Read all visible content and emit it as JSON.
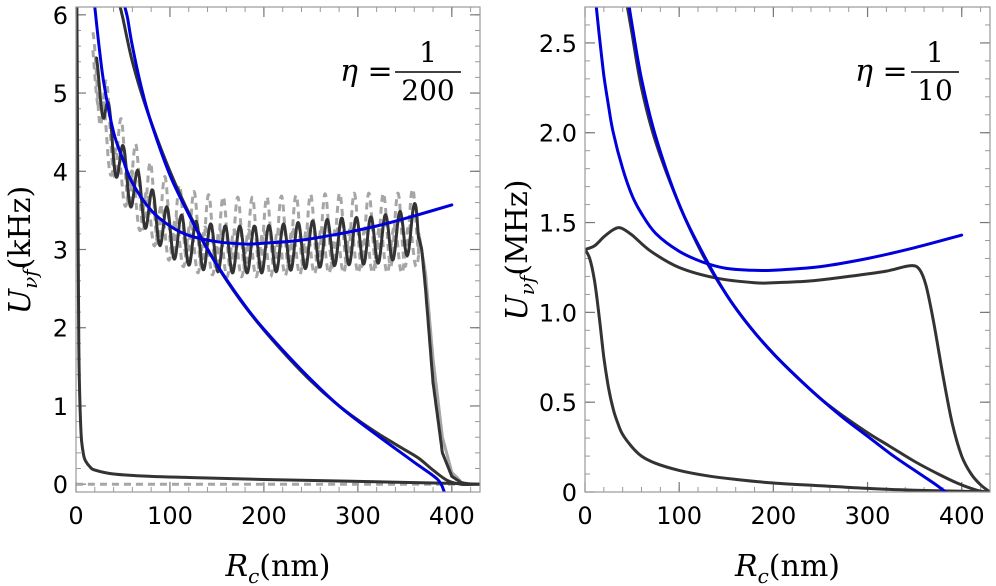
{
  "chart_data": [
    {
      "type": "line",
      "panel": "left",
      "xlabel": {
        "var": "R",
        "sub": "c",
        "unit": "(nm)"
      },
      "ylabel": {
        "var": "U",
        "sub": "νf",
        "unit": "(kHz)"
      },
      "annotation": {
        "lhs": "η =",
        "num": "1",
        "den": "200"
      },
      "xlim": [
        0,
        430
      ],
      "ylim": [
        -0.1,
        6.1
      ],
      "xticks": [
        0,
        100,
        200,
        300,
        400
      ],
      "xtick_labels": [
        "0",
        "100",
        "200",
        "300",
        "400"
      ],
      "yticks": [
        0,
        1,
        2,
        3,
        4,
        5,
        6
      ],
      "ytick_labels": [
        "0",
        "1",
        "2",
        "3",
        "4",
        "5",
        "6"
      ],
      "series": [
        {
          "style": "gray-dashed",
          "color": "#a6a6a6",
          "x": [
            0,
            430
          ],
          "y": [
            0,
            0
          ]
        },
        {
          "style": "gray-dashed",
          "color": "#a6a6a6",
          "kind": "oscillating",
          "osc": {
            "A": 0.47,
            "offset": 0.15,
            "period": 15.5,
            "phase": 0.9
          },
          "x": [
            18,
            25,
            35,
            50,
            70,
            100,
            130,
            160,
            200,
            240,
            280,
            320,
            350,
            365,
            372,
            380,
            390,
            400,
            410
          ],
          "y": [
            5.6,
            4.9,
            4.4,
            4.0,
            3.6,
            3.25,
            3.1,
            3.05,
            3.05,
            3.08,
            3.1,
            3.1,
            3.1,
            3.2,
            2.7,
            1.6,
            0.6,
            0.15,
            0.03
          ]
        },
        {
          "style": "gray-dashed",
          "color": "#a6a6a6",
          "kind": "oscillating",
          "osc": {
            "A": 0.3,
            "offset": -0.1,
            "period": 15.5,
            "phase": 2.4
          },
          "x": [
            18,
            25,
            35,
            50,
            70,
            100,
            130,
            160,
            200,
            240,
            280,
            320,
            350,
            365,
            372,
            380,
            390,
            400,
            410
          ],
          "y": [
            5.6,
            4.9,
            4.4,
            4.0,
            3.6,
            3.25,
            3.1,
            3.05,
            3.05,
            3.08,
            3.1,
            3.1,
            3.1,
            3.2,
            2.7,
            1.6,
            0.6,
            0.15,
            0.03
          ]
        },
        {
          "style": "dark",
          "color": "#333333",
          "kind": "oscillating",
          "osc": {
            "A": 0.3,
            "offset": 0.0,
            "period": 15.5,
            "phase": 0.0
          },
          "x": [
            22,
            30,
            40,
            55,
            75,
            100,
            130,
            160,
            200,
            240,
            280,
            320,
            350,
            362,
            368,
            372,
            380,
            390,
            400,
            410,
            420
          ],
          "y": [
            5.4,
            4.8,
            4.3,
            3.9,
            3.55,
            3.2,
            3.05,
            3.0,
            3.0,
            3.05,
            3.1,
            3.12,
            3.2,
            3.3,
            3.0,
            2.5,
            1.3,
            0.4,
            0.1,
            0.02,
            0.0
          ]
        },
        {
          "style": "dark",
          "color": "#333333",
          "x": [
            1,
            2,
            3,
            4,
            5,
            6,
            8,
            10,
            15,
            20,
            40,
            80,
            120,
            200,
            300,
            400,
            430
          ],
          "y": [
            6.1,
            3.5,
            1.8,
            1.1,
            0.75,
            0.55,
            0.38,
            0.3,
            0.22,
            0.18,
            0.13,
            0.1,
            0.085,
            0.06,
            0.035,
            0.01,
            0.0
          ]
        },
        {
          "style": "dark",
          "color": "#333333",
          "x": [
            47,
            50,
            60,
            75,
            100,
            125,
            150,
            175,
            200,
            225,
            250,
            275,
            300,
            325,
            350,
            365,
            380,
            395,
            410,
            430
          ],
          "y": [
            6.1,
            5.95,
            5.4,
            4.8,
            4.0,
            3.35,
            2.8,
            2.35,
            1.97,
            1.63,
            1.32,
            1.05,
            0.82,
            0.62,
            0.44,
            0.33,
            0.18,
            0.05,
            0.0,
            0.0
          ]
        },
        {
          "style": "blue",
          "color": "#0000dd",
          "x": [
            52,
            55,
            60,
            70,
            80,
            100,
            120,
            140,
            160,
            180,
            200,
            240,
            280,
            320,
            360,
            385,
            392
          ],
          "y": [
            6.1,
            5.95,
            5.6,
            5.05,
            4.62,
            3.95,
            3.45,
            3.0,
            2.62,
            2.28,
            1.98,
            1.46,
            1.0,
            0.63,
            0.28,
            0.06,
            -0.1
          ]
        },
        {
          "style": "blue",
          "color": "#0000dd",
          "x": [
            20,
            25,
            30,
            40,
            50,
            60,
            80,
            100,
            120,
            150,
            180,
            200,
            240,
            280,
            320,
            360,
            400
          ],
          "y": [
            6.1,
            5.55,
            5.1,
            4.5,
            4.15,
            3.85,
            3.5,
            3.3,
            3.18,
            3.1,
            3.07,
            3.08,
            3.12,
            3.2,
            3.3,
            3.43,
            3.57
          ]
        }
      ]
    },
    {
      "type": "line",
      "panel": "right",
      "xlabel": {
        "var": "R",
        "sub": "c",
        "unit": "(nm)"
      },
      "ylabel": {
        "var": "U",
        "sub": "νf",
        "unit": "(MHz)"
      },
      "annotation": {
        "lhs": "η =",
        "num": "1",
        "den": "10"
      },
      "xlim": [
        0,
        430
      ],
      "ylim": [
        0,
        2.7
      ],
      "xticks": [
        0,
        100,
        200,
        300,
        400
      ],
      "xtick_labels": [
        "0",
        "100",
        "200",
        "300",
        "400"
      ],
      "yticks": [
        0,
        0.5,
        1.0,
        1.5,
        2.0,
        2.5
      ],
      "ytick_labels": [
        "0",
        "0.5",
        "1.0",
        "1.5",
        "2.0",
        "2.5"
      ],
      "series": [
        {
          "style": "dark",
          "color": "#333333",
          "x": [
            0,
            5,
            10,
            15,
            20,
            25,
            30,
            35,
            40,
            50,
            60,
            75,
            100,
            130,
            160,
            200,
            250,
            300,
            350,
            400,
            430
          ],
          "y": [
            1.35,
            1.3,
            1.18,
            0.98,
            0.75,
            0.58,
            0.46,
            0.38,
            0.32,
            0.25,
            0.2,
            0.16,
            0.12,
            0.09,
            0.07,
            0.05,
            0.035,
            0.02,
            0.01,
            0.004,
            0.0
          ]
        },
        {
          "style": "dark",
          "color": "#333333",
          "x": [
            0,
            10,
            20,
            30,
            38,
            50,
            70,
            100,
            140,
            180,
            200,
            240,
            280,
            320,
            345,
            355,
            362,
            370,
            380,
            390,
            400,
            410,
            420,
            430
          ],
          "y": [
            1.35,
            1.37,
            1.42,
            1.46,
            1.47,
            1.43,
            1.34,
            1.25,
            1.19,
            1.165,
            1.165,
            1.175,
            1.2,
            1.23,
            1.26,
            1.24,
            1.15,
            0.95,
            0.65,
            0.38,
            0.2,
            0.1,
            0.04,
            0.0
          ]
        },
        {
          "style": "dark",
          "color": "#333333",
          "x": [
            45,
            50,
            60,
            75,
            100,
            125,
            150,
            175,
            200,
            225,
            250,
            275,
            300,
            325,
            350,
            375,
            395,
            410,
            420,
            430
          ],
          "y": [
            2.7,
            2.55,
            2.25,
            1.95,
            1.6,
            1.32,
            1.1,
            0.92,
            0.77,
            0.64,
            0.52,
            0.42,
            0.33,
            0.25,
            0.17,
            0.1,
            0.05,
            0.02,
            0.005,
            0.0
          ]
        },
        {
          "style": "blue",
          "color": "#0000dd",
          "x": [
            47,
            50,
            60,
            75,
            100,
            125,
            150,
            175,
            200,
            225,
            250,
            275,
            300,
            325,
            350,
            370,
            383
          ],
          "y": [
            2.7,
            2.6,
            2.3,
            1.98,
            1.6,
            1.33,
            1.1,
            0.92,
            0.77,
            0.64,
            0.52,
            0.41,
            0.31,
            0.21,
            0.12,
            0.05,
            0.0
          ]
        },
        {
          "style": "blue",
          "color": "#0000dd",
          "x": [
            12,
            15,
            20,
            25,
            30,
            40,
            50,
            60,
            75,
            100,
            125,
            150,
            175,
            200,
            250,
            300,
            350,
            400
          ],
          "y": [
            2.7,
            2.55,
            2.32,
            2.15,
            2.0,
            1.8,
            1.65,
            1.55,
            1.44,
            1.34,
            1.28,
            1.245,
            1.235,
            1.235,
            1.255,
            1.3,
            1.36,
            1.43
          ]
        }
      ]
    }
  ]
}
